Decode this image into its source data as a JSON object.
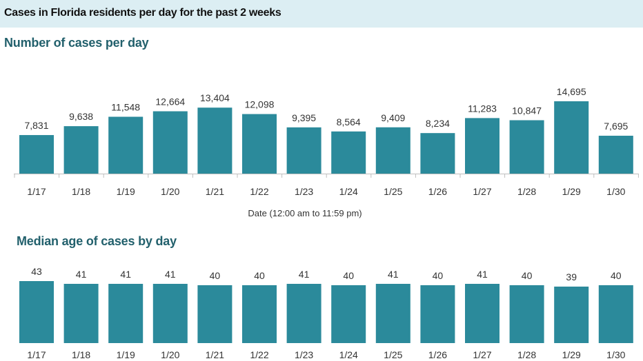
{
  "header": {
    "title": "Cases in Florida residents per day for the past 2 weeks"
  },
  "chart_data": [
    {
      "type": "bar",
      "title": "Number of cases per day",
      "xlabel": "Date (12:00 am to 11:59 pm)",
      "ylabel": "",
      "categories": [
        "1/17",
        "1/18",
        "1/19",
        "1/20",
        "1/21",
        "1/22",
        "1/23",
        "1/24",
        "1/25",
        "1/26",
        "1/27",
        "1/28",
        "1/29",
        "1/30"
      ],
      "values": [
        7831,
        9638,
        11548,
        12664,
        13404,
        12098,
        9395,
        8564,
        9409,
        8234,
        11283,
        10847,
        14695,
        7695
      ],
      "value_labels": [
        "7,831",
        "9,638",
        "11,548",
        "12,664",
        "13,404",
        "12,098",
        "9,395",
        "8,564",
        "9,409",
        "8,234",
        "11,283",
        "10,847",
        "14,695",
        "7,695"
      ],
      "ylim": [
        0,
        16000
      ],
      "grid": false,
      "bar_color": "#2b8a9b"
    },
    {
      "type": "bar",
      "title": "Median age of cases by day",
      "xlabel": "",
      "ylabel": "",
      "categories": [
        "1/17",
        "1/18",
        "1/19",
        "1/20",
        "1/21",
        "1/22",
        "1/23",
        "1/24",
        "1/25",
        "1/26",
        "1/27",
        "1/28",
        "1/29",
        "1/30"
      ],
      "values": [
        43,
        41,
        41,
        41,
        40,
        40,
        41,
        40,
        41,
        40,
        41,
        40,
        39,
        40
      ],
      "value_labels": [
        "43",
        "41",
        "41",
        "41",
        "40",
        "40",
        "41",
        "40",
        "41",
        "40",
        "41",
        "40",
        "39",
        "40"
      ],
      "ylim": [
        0,
        45
      ],
      "grid": false,
      "bar_color": "#2b8a9b"
    }
  ]
}
